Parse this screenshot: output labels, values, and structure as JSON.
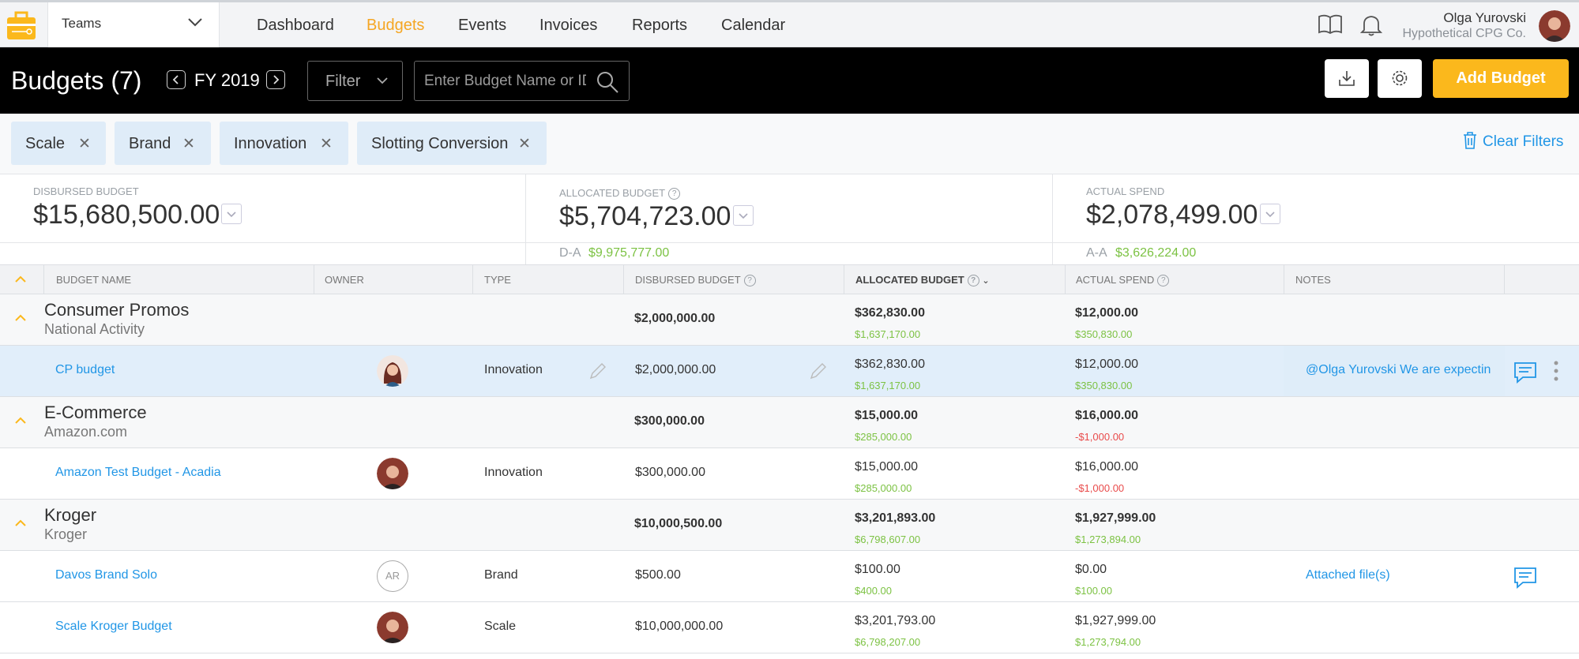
{
  "nav": {
    "team": "Teams",
    "items": [
      "Dashboard",
      "Budgets",
      "Events",
      "Invoices",
      "Reports",
      "Calendar"
    ],
    "active": "Budgets",
    "user_name": "Olga Yurovski",
    "user_company": "Hypothetical CPG Co."
  },
  "header": {
    "title": "Budgets (7)",
    "fiscal_year": "FY 2019",
    "filter_label": "Filter",
    "search_placeholder": "Enter Budget Name or ID",
    "add_button": "Add Budget"
  },
  "filters": {
    "chips": [
      "Scale",
      "Brand",
      "Innovation",
      "Slotting Conversion"
    ],
    "clear_label": "Clear Filters"
  },
  "summary": {
    "disbursed_label": "Disbursed Budget",
    "disbursed_value": "$15,680,500.00",
    "allocated_label": "Allocated Budget",
    "allocated_value": "$5,704,723.00",
    "actual_label": "Actual Spend",
    "actual_value": "$2,078,499.00",
    "da_label": "D-A",
    "da_value": "$9,975,777.00",
    "aa_label": "A-A",
    "aa_value": "$3,626,224.00"
  },
  "table": {
    "columns": [
      "Budget Name",
      "Owner",
      "Type",
      "Disbursed Budget",
      "Allocated Budget",
      "Actual Spend",
      "Notes"
    ],
    "groups": [
      {
        "title": "Consumer Promos",
        "subtitle": "National Activity",
        "disbursed": "$2,000,000.00",
        "allocated": "$362,830.00",
        "allocated_sub": "$1,637,170.00",
        "actual": "$12,000.00",
        "actual_sub": "$350,830.00",
        "rows": [
          {
            "name": "CP budget",
            "type": "Innovation",
            "disbursed": "$2,000,000.00",
            "allocated": "$362,830.00",
            "allocated_sub": "$1,637,170.00",
            "actual": "$12,000.00",
            "actual_sub": "$350,830.00",
            "notes": "@Olga Yurovski We are expectin"
          }
        ]
      },
      {
        "title": "E-Commerce",
        "subtitle": "Amazon.com",
        "disbursed": "$300,000.00",
        "allocated": "$15,000.00",
        "allocated_sub": "$285,000.00",
        "actual": "$16,000.00",
        "actual_sub": "-$1,000.00",
        "rows": [
          {
            "name": "Amazon Test Budget - Acadia",
            "type": "Innovation",
            "disbursed": "$300,000.00",
            "allocated": "$15,000.00",
            "allocated_sub": "$285,000.00",
            "actual": "$16,000.00",
            "actual_sub": "-$1,000.00",
            "notes": ""
          }
        ]
      },
      {
        "title": "Kroger",
        "subtitle": "Kroger",
        "disbursed": "$10,000,500.00",
        "allocated": "$3,201,893.00",
        "allocated_sub": "$6,798,607.00",
        "actual": "$1,927,999.00",
        "actual_sub": "$1,273,894.00",
        "rows": [
          {
            "name": "Davos Brand Solo",
            "owner_initials": "AR",
            "type": "Brand",
            "disbursed": "$500.00",
            "allocated": "$100.00",
            "allocated_sub": "$400.00",
            "actual": "$0.00",
            "actual_sub": "$100.00",
            "notes": "Attached file(s)"
          },
          {
            "name": "Scale Kroger Budget",
            "type": "Scale",
            "disbursed": "$10,000,000.00",
            "allocated": "$3,201,793.00",
            "allocated_sub": "$6,798,207.00",
            "actual": "$1,927,999.00",
            "actual_sub": "$1,273,794.00",
            "notes": ""
          }
        ]
      }
    ]
  },
  "colors": {
    "accent": "#fbb81c",
    "link": "#2196e6",
    "positive": "#7cc243",
    "negative": "#e94b4b"
  }
}
